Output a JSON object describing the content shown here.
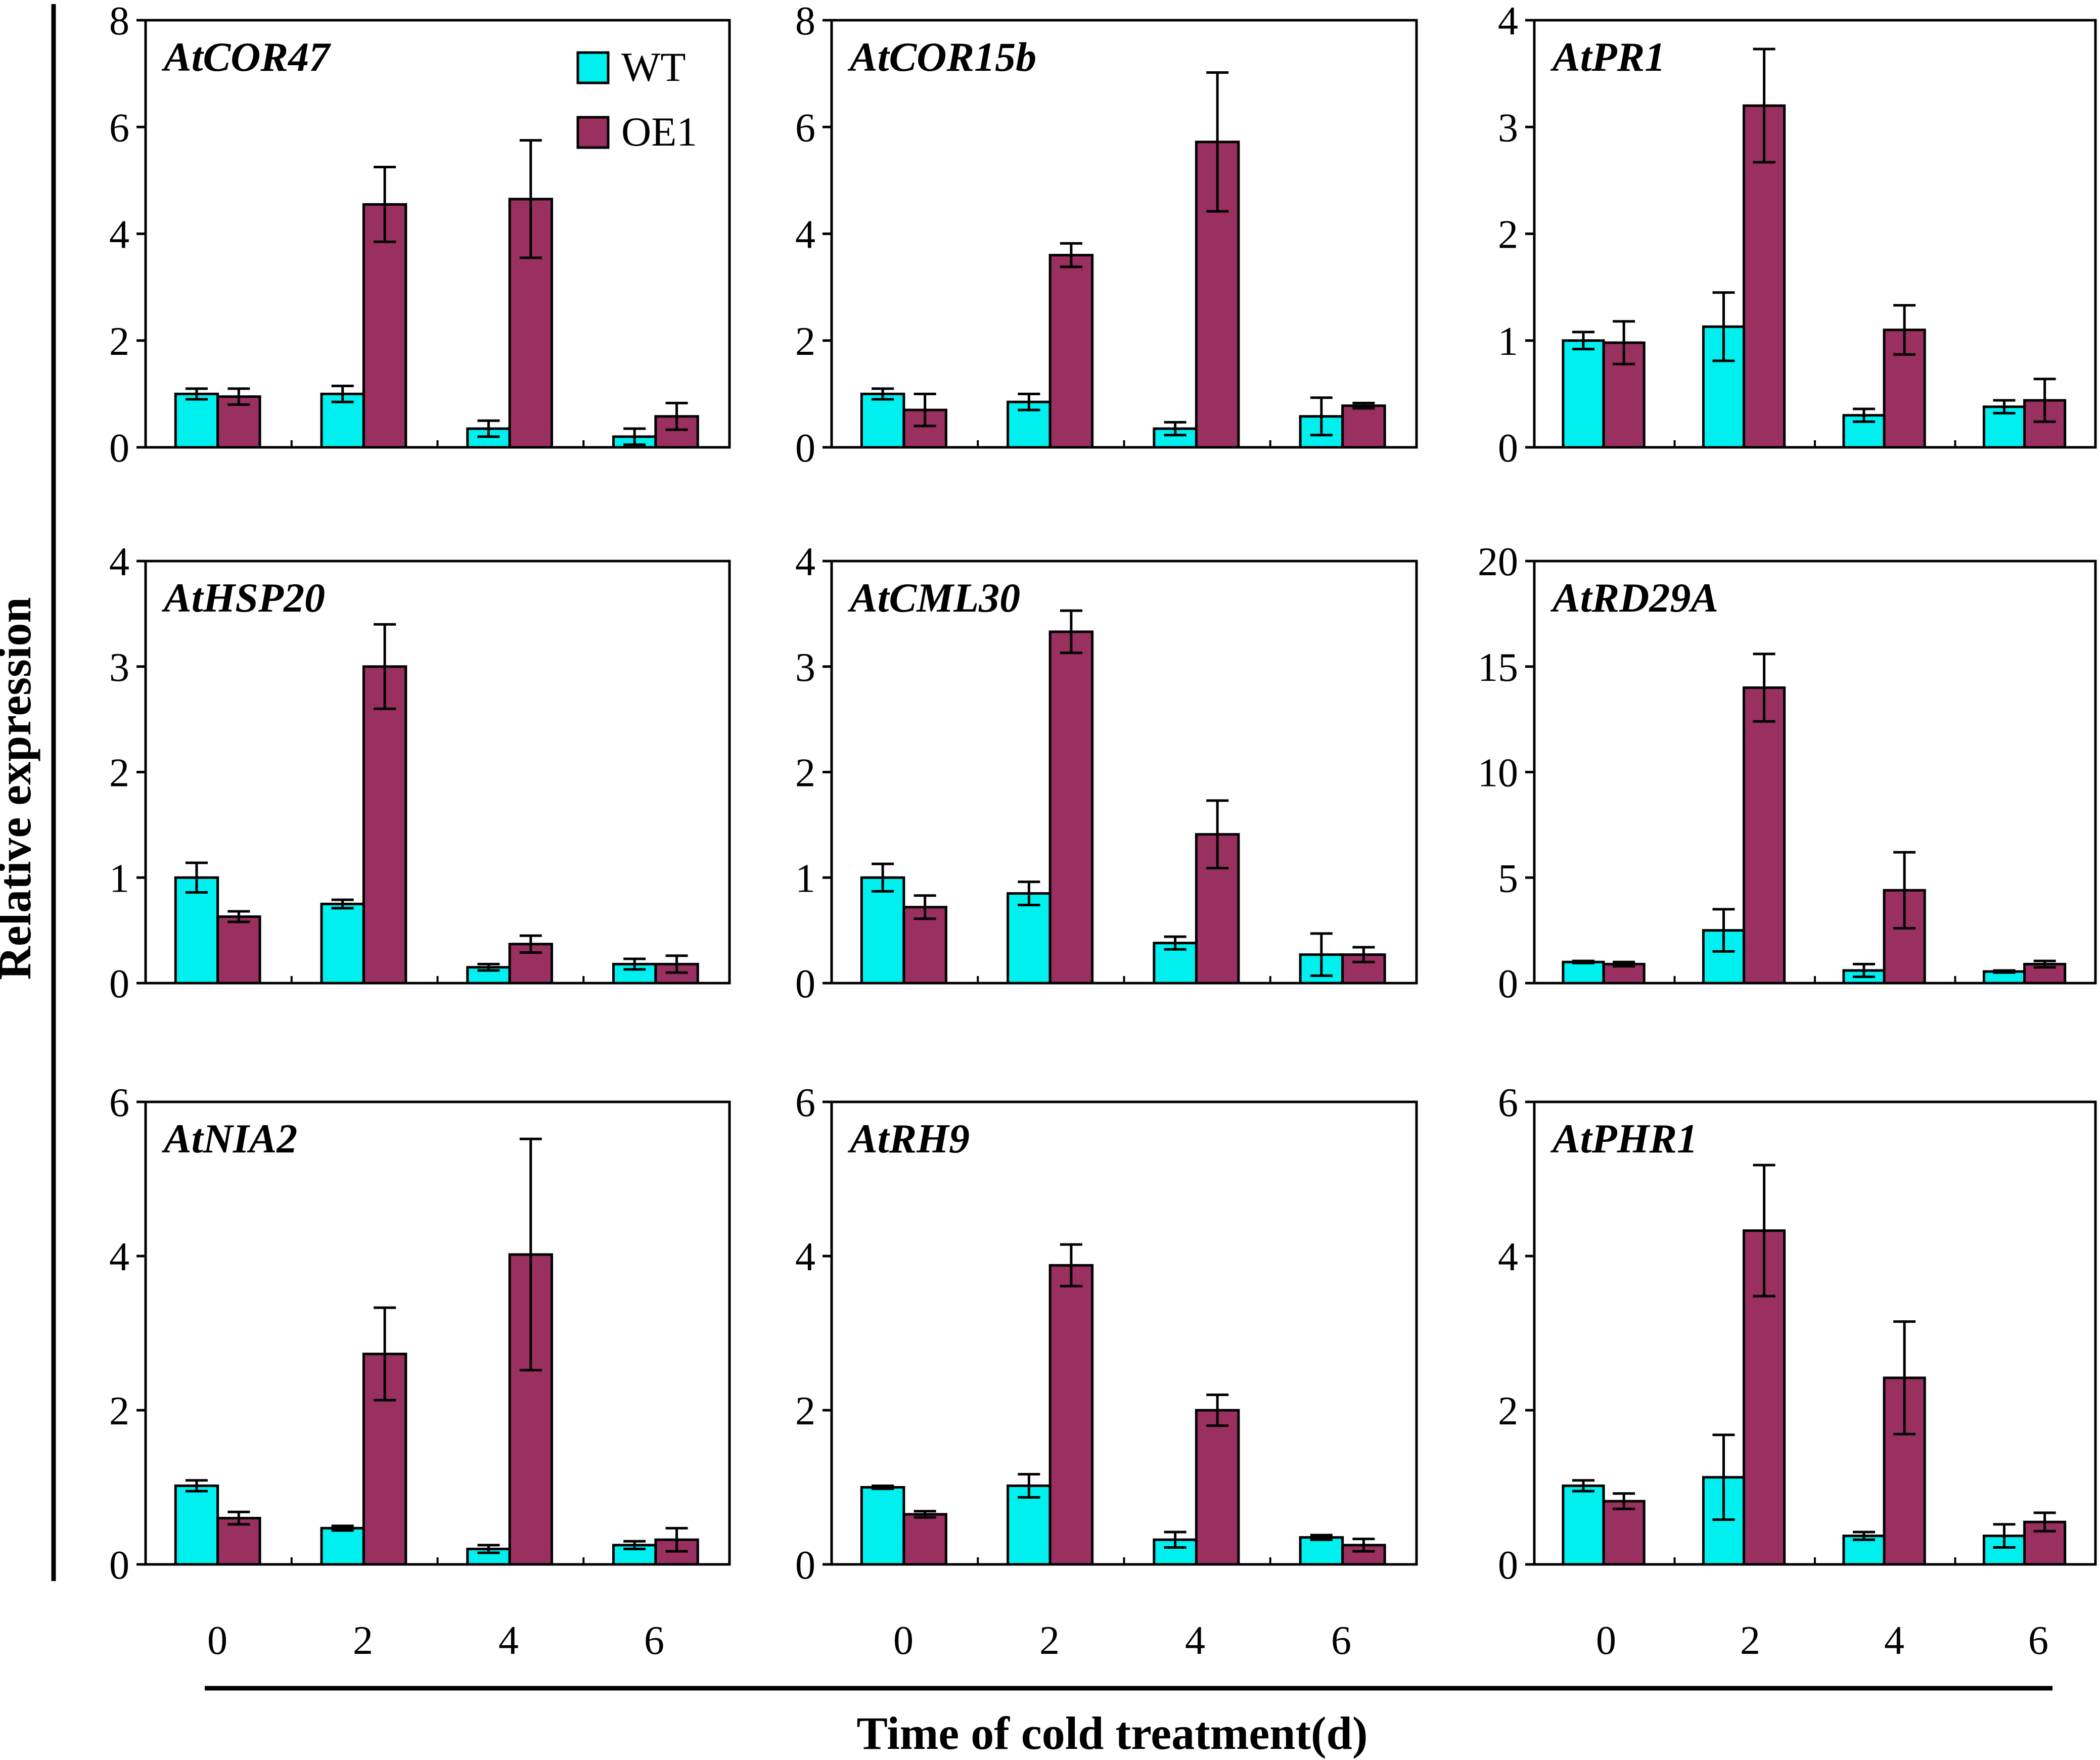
{
  "figure": {
    "ylabel": "Relative expression",
    "xlabel": "Time of cold treatment(d)",
    "x_tick_labels": [
      "0",
      "2",
      "4",
      "6"
    ],
    "legend": [
      {
        "name": "WT",
        "color": "#00F0F0"
      },
      {
        "name": "OE1",
        "color": "#9A3060"
      }
    ]
  },
  "chart_data": [
    {
      "type": "bar",
      "title": "AtCOR47",
      "categories": [
        "0",
        "2",
        "4",
        "6"
      ],
      "ylim": [
        0,
        8
      ],
      "yticks": [
        "0",
        "2",
        "4",
        "6",
        "8"
      ],
      "legend": true,
      "series": [
        {
          "name": "WT",
          "values": [
            1.0,
            1.0,
            0.35,
            0.2
          ],
          "errors": [
            0.1,
            0.15,
            0.15,
            0.15
          ]
        },
        {
          "name": "OE1",
          "values": [
            0.95,
            4.55,
            4.65,
            0.58
          ],
          "errors": [
            0.15,
            0.7,
            1.1,
            0.25
          ]
        }
      ]
    },
    {
      "type": "bar",
      "title": "AtCOR15b",
      "categories": [
        "0",
        "2",
        "4",
        "6"
      ],
      "ylim": [
        0,
        8
      ],
      "yticks": [
        "0",
        "2",
        "4",
        "6",
        "8"
      ],
      "series": [
        {
          "name": "WT",
          "values": [
            1.0,
            0.85,
            0.35,
            0.58
          ],
          "errors": [
            0.1,
            0.15,
            0.12,
            0.35
          ]
        },
        {
          "name": "OE1",
          "values": [
            0.7,
            3.6,
            5.72,
            0.78
          ],
          "errors": [
            0.3,
            0.22,
            1.3,
            0.05
          ]
        }
      ]
    },
    {
      "type": "bar",
      "title": "AtPR1",
      "categories": [
        "0",
        "2",
        "4",
        "6"
      ],
      "ylim": [
        0,
        4
      ],
      "yticks": [
        "0",
        "1",
        "2",
        "3",
        "4"
      ],
      "series": [
        {
          "name": "WT",
          "values": [
            1.0,
            1.13,
            0.3,
            0.38
          ],
          "errors": [
            0.08,
            0.32,
            0.06,
            0.06
          ]
        },
        {
          "name": "OE1",
          "values": [
            0.98,
            3.2,
            1.1,
            0.44
          ],
          "errors": [
            0.2,
            0.53,
            0.23,
            0.2
          ]
        }
      ]
    },
    {
      "type": "bar",
      "title": "AtHSP20",
      "categories": [
        "0",
        "2",
        "4",
        "6"
      ],
      "ylim": [
        0,
        4
      ],
      "yticks": [
        "0",
        "1",
        "2",
        "3",
        "4"
      ],
      "series": [
        {
          "name": "WT",
          "values": [
            1.0,
            0.75,
            0.15,
            0.18
          ],
          "errors": [
            0.14,
            0.04,
            0.03,
            0.05
          ]
        },
        {
          "name": "OE1",
          "values": [
            0.63,
            3.0,
            0.37,
            0.18
          ],
          "errors": [
            0.05,
            0.4,
            0.08,
            0.08
          ]
        }
      ]
    },
    {
      "type": "bar",
      "title": "AtCML30",
      "categories": [
        "0",
        "2",
        "4",
        "6"
      ],
      "ylim": [
        0,
        4
      ],
      "yticks": [
        "0",
        "1",
        "2",
        "3",
        "4"
      ],
      "series": [
        {
          "name": "WT",
          "values": [
            1.0,
            0.85,
            0.38,
            0.27
          ],
          "errors": [
            0.13,
            0.11,
            0.06,
            0.2
          ]
        },
        {
          "name": "OE1",
          "values": [
            0.72,
            3.33,
            1.41,
            0.27
          ],
          "errors": [
            0.11,
            0.2,
            0.32,
            0.07
          ]
        }
      ]
    },
    {
      "type": "bar",
      "title": "AtRD29A",
      "categories": [
        "0",
        "2",
        "4",
        "6"
      ],
      "ylim": [
        0,
        20
      ],
      "yticks": [
        "0",
        "5",
        "10",
        "15",
        "20"
      ],
      "series": [
        {
          "name": "WT",
          "values": [
            1.0,
            2.5,
            0.6,
            0.55
          ],
          "errors": [
            0.05,
            1.0,
            0.3,
            0.05
          ]
        },
        {
          "name": "OE1",
          "values": [
            0.9,
            14.0,
            4.4,
            0.9
          ],
          "errors": [
            0.1,
            1.6,
            1.8,
            0.15
          ]
        }
      ]
    },
    {
      "type": "bar",
      "title": "AtNIA2",
      "categories": [
        "0",
        "2",
        "4",
        "6"
      ],
      "ylim": [
        0,
        6
      ],
      "yticks": [
        "0",
        "2",
        "4",
        "6"
      ],
      "series": [
        {
          "name": "WT",
          "values": [
            1.02,
            0.47,
            0.2,
            0.25
          ],
          "errors": [
            0.07,
            0.03,
            0.05,
            0.05
          ]
        },
        {
          "name": "OE1",
          "values": [
            0.6,
            2.73,
            4.02,
            0.32
          ],
          "errors": [
            0.08,
            0.6,
            1.5,
            0.15
          ]
        }
      ]
    },
    {
      "type": "bar",
      "title": "AtRH9",
      "categories": [
        "0",
        "2",
        "4",
        "6"
      ],
      "ylim": [
        0,
        6
      ],
      "yticks": [
        "0",
        "2",
        "4",
        "6"
      ],
      "series": [
        {
          "name": "WT",
          "values": [
            1.0,
            1.02,
            0.32,
            0.35
          ],
          "errors": [
            0.02,
            0.15,
            0.1,
            0.03
          ]
        },
        {
          "name": "OE1",
          "values": [
            0.65,
            3.88,
            2.0,
            0.25
          ],
          "errors": [
            0.04,
            0.27,
            0.2,
            0.08
          ]
        }
      ]
    },
    {
      "type": "bar",
      "title": "AtPHR1",
      "categories": [
        "0",
        "2",
        "4",
        "6"
      ],
      "ylim": [
        0,
        6
      ],
      "yticks": [
        "0",
        "2",
        "4",
        "6"
      ],
      "series": [
        {
          "name": "WT",
          "values": [
            1.02,
            1.13,
            0.37,
            0.37
          ],
          "errors": [
            0.07,
            0.55,
            0.05,
            0.15
          ]
        },
        {
          "name": "OE1",
          "values": [
            0.82,
            4.33,
            2.42,
            0.55
          ],
          "errors": [
            0.1,
            0.85,
            0.73,
            0.12
          ]
        }
      ]
    }
  ]
}
